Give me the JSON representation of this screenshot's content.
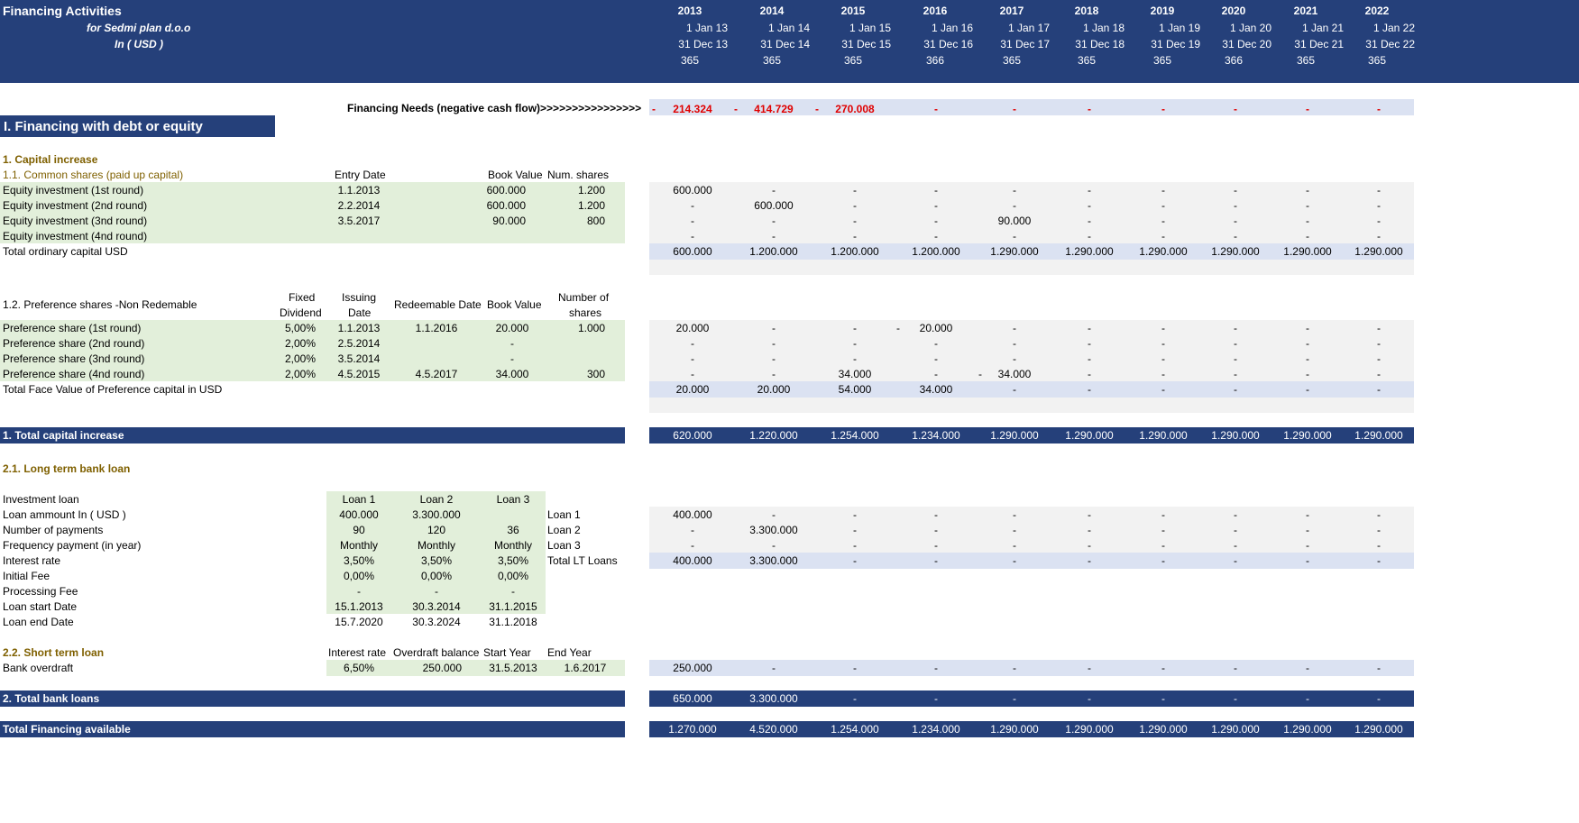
{
  "header": {
    "title": "Financing Activities",
    "company": "for Sedmi plan d.o.o",
    "currency": "In ( USD )",
    "years": [
      "2013",
      "2014",
      "2015",
      "2016",
      "2017",
      "2018",
      "2019",
      "2020",
      "2021",
      "2022"
    ],
    "starts": [
      "1 Jan 13",
      "1 Jan 14",
      "1 Jan 15",
      "1 Jan 16",
      "1 Jan 17",
      "1 Jan 18",
      "1 Jan 19",
      "1 Jan 20",
      "1 Jan 21",
      "1 Jan 22"
    ],
    "ends": [
      "31 Dec 13",
      "31 Dec 14",
      "31 Dec 15",
      "31 Dec 16",
      "31 Dec 17",
      "31 Dec 18",
      "31 Dec 19",
      "31 Dec 20",
      "31 Dec 21",
      "31 Dec 22"
    ],
    "days": [
      "365",
      "365",
      "365",
      "366",
      "365",
      "365",
      "365",
      "366",
      "365",
      "365"
    ]
  },
  "needs": {
    "label": "Financing Needs (negative cash flow)>>>>>>>>>>>>>>>>",
    "dash": "-",
    "values": [
      "214.324",
      "414.729",
      "270.008",
      "-",
      "-",
      "-",
      "-",
      "-",
      "-",
      "-"
    ]
  },
  "section1_title": "I.  Financing with debt or equity",
  "capital": {
    "title": "1. Capital increase",
    "common_title": "1.1. Common shares (paid up capital)",
    "col_entry": "Entry Date",
    "col_book": "Book Value",
    "col_num": "Num. shares",
    "rows": [
      {
        "label": "Equity investment (1st round)",
        "date": "1.1.2013",
        "book": "600.000",
        "num": "1.200",
        "vals": [
          "600.000",
          "-",
          "-",
          "-",
          "-",
          "-",
          "-",
          "-",
          "-",
          "-"
        ]
      },
      {
        "label": "Equity investment (2nd round)",
        "date": "2.2.2014",
        "book": "600.000",
        "num": "1.200",
        "vals": [
          "-",
          "600.000",
          "-",
          "-",
          "-",
          "-",
          "-",
          "-",
          "-",
          "-"
        ]
      },
      {
        "label": "Equity investment (3nd round)",
        "date": "3.5.2017",
        "book": "90.000",
        "num": "800",
        "vals": [
          "-",
          "-",
          "-",
          "-",
          "90.000",
          "-",
          "-",
          "-",
          "-",
          "-"
        ]
      },
      {
        "label": "Equity investment (4nd round)",
        "date": "",
        "book": "",
        "num": "",
        "vals": [
          "-",
          "-",
          "-",
          "-",
          "-",
          "-",
          "-",
          "-",
          "-",
          "-"
        ]
      }
    ],
    "total_label": "Total ordinary capital USD",
    "total_vals": [
      "600.000",
      "1.200.000",
      "1.200.000",
      "1.200.000",
      "1.290.000",
      "1.290.000",
      "1.290.000",
      "1.290.000",
      "1.290.000",
      "1.290.000"
    ]
  },
  "pref": {
    "title": "1.2. Preference shares -Non Redemable",
    "col_fixed1": "Fixed",
    "col_fixed2": "Dividend",
    "col_issue1": "Issuing",
    "col_issue2": "Date",
    "col_redeem": "Redeemable Date",
    "col_book": "Book Value",
    "col_num1": "Number of",
    "col_num2": "shares",
    "rows": [
      {
        "label": "Preference share (1st round)",
        "div": "5,00%",
        "issue": "1.1.2013",
        "redeem": "1.1.2016",
        "book": "20.000",
        "num": "1.000",
        "vals": [
          "20.000",
          "-",
          "-",
          "20.000",
          "-",
          "-",
          "-",
          "-",
          "-",
          "-"
        ]
      },
      {
        "label": "Preference share (2nd round)",
        "div": "2,00%",
        "issue": "2.5.2014",
        "redeem": "",
        "book": "-",
        "num": "",
        "vals": [
          "-",
          "-",
          "-",
          "-",
          "-",
          "-",
          "-",
          "-",
          "-",
          "-"
        ]
      },
      {
        "label": "Preference share (3nd round)",
        "div": "2,00%",
        "issue": "3.5.2014",
        "redeem": "",
        "book": "-",
        "num": "",
        "vals": [
          "-",
          "-",
          "-",
          "-",
          "-",
          "-",
          "-",
          "-",
          "-",
          "-"
        ]
      },
      {
        "label": "Preference share (4nd round)",
        "div": "2,00%",
        "issue": "4.5.2015",
        "redeem": "4.5.2017",
        "book": "34.000",
        "num": "300",
        "vals": [
          "-",
          "-",
          "34.000",
          "-",
          "34.000",
          "-",
          "-",
          "-",
          "-",
          "-"
        ]
      }
    ],
    "extra_dash": "-",
    "total_label": "Total Face Value of Preference capital in USD",
    "total_vals": [
      "20.000",
      "20.000",
      "54.000",
      "34.000",
      "-",
      "-",
      "-",
      "-",
      "-",
      "-"
    ]
  },
  "total_capital": {
    "label": "1. Total capital increase",
    "vals": [
      "620.000",
      "1.220.000",
      "1.254.000",
      "1.234.000",
      "1.290.000",
      "1.290.000",
      "1.290.000",
      "1.290.000",
      "1.290.000",
      "1.290.000"
    ]
  },
  "loans": {
    "title": "2.1. Long term bank loan",
    "param_labels": [
      "Investment loan",
      "Loan ammount In ( USD )",
      "Number of payments",
      "Frequency payment (in year)",
      "Interest rate",
      "Initial Fee",
      "Processing Fee",
      "Loan start Date",
      "Loan end Date"
    ],
    "loan_cols": [
      {
        "name": "Loan 1",
        "amount": "400.000",
        "payments": "90",
        "freq": "Monthly",
        "rate": "3,50%",
        "init": "0,00%",
        "proc": "-",
        "start": "15.1.2013",
        "end": "15.7.2020"
      },
      {
        "name": "Loan 2",
        "amount": "3.300.000",
        "payments": "120",
        "freq": "Monthly",
        "rate": "3,50%",
        "init": "0,00%",
        "proc": "-",
        "start": "30.3.2014",
        "end": "30.3.2024"
      },
      {
        "name": "Loan 3",
        "amount": "",
        "payments": "36",
        "freq": "Monthly",
        "rate": "3,50%",
        "init": "0,00%",
        "proc": "-",
        "start": "31.1.2015",
        "end": "31.1.2018"
      }
    ],
    "schedule": [
      {
        "label": "Loan 1",
        "vals": [
          "400.000",
          "-",
          "-",
          "-",
          "-",
          "-",
          "-",
          "-",
          "-",
          "-"
        ]
      },
      {
        "label": "Loan 2",
        "vals": [
          "-",
          "3.300.000",
          "-",
          "-",
          "-",
          "-",
          "-",
          "-",
          "-",
          "-"
        ]
      },
      {
        "label": "Loan 3",
        "vals": [
          "-",
          "-",
          "-",
          "-",
          "-",
          "-",
          "-",
          "-",
          "-",
          "-"
        ]
      },
      {
        "label": "Total LT Loans",
        "vals": [
          "400.000",
          "3.300.000",
          "-",
          "-",
          "-",
          "-",
          "-",
          "-",
          "-",
          "-"
        ]
      }
    ]
  },
  "short": {
    "title": "2.2. Short term loan",
    "col_rate": "Interest rate",
    "col_balance": "Overdraft balance",
    "col_start": "Start  Year",
    "col_end": "End Year",
    "label": "Bank overdraft",
    "rate": "6,50%",
    "balance": "250.000",
    "start": "31.5.2013",
    "end": "1.6.2017",
    "vals": [
      "250.000",
      "-",
      "-",
      "-",
      "-",
      "-",
      "-",
      "-",
      "-",
      "-"
    ]
  },
  "total_bank": {
    "label": "2. Total bank loans",
    "vals": [
      "650.000",
      "3.300.000",
      "-",
      "-",
      "-",
      "-",
      "-",
      "-",
      "-",
      "-"
    ]
  },
  "total_fin": {
    "label": "Total Financing available",
    "vals": [
      "1.270.000",
      "4.520.000",
      "1.254.000",
      "1.234.000",
      "1.290.000",
      "1.290.000",
      "1.290.000",
      "1.290.000",
      "1.290.000",
      "1.290.000"
    ]
  }
}
